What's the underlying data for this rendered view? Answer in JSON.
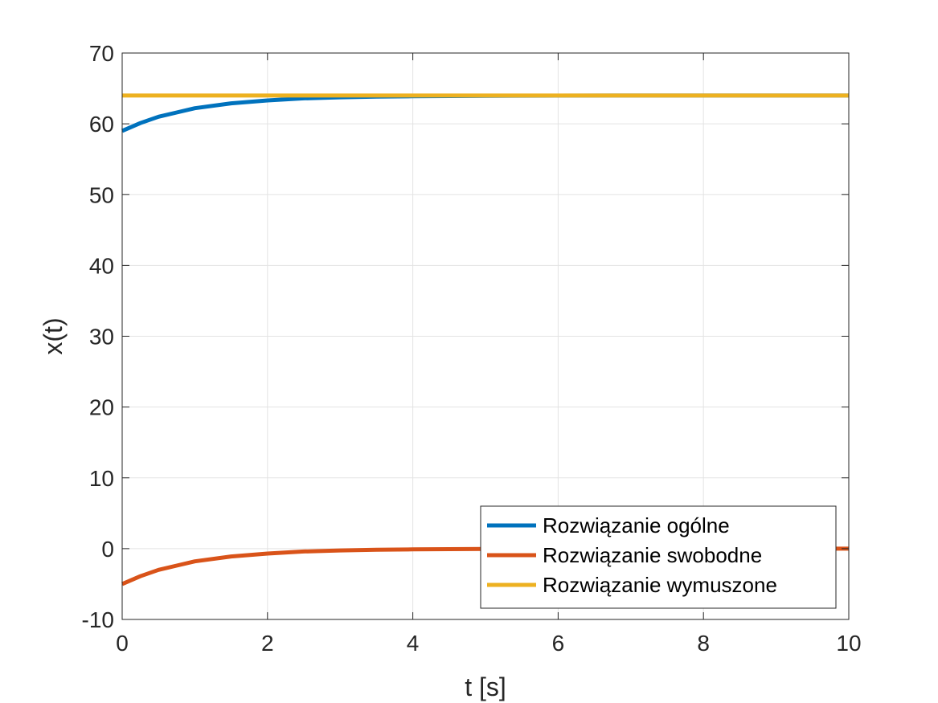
{
  "chart_data": {
    "type": "line",
    "xlabel": "t [s]",
    "ylabel": "x(t)",
    "xlim": [
      0,
      10
    ],
    "ylim": [
      -10,
      70
    ],
    "xticks": [
      0,
      2,
      4,
      6,
      8,
      10
    ],
    "yticks": [
      -10,
      0,
      10,
      20,
      30,
      40,
      50,
      60,
      70
    ],
    "xtick_labels": [
      "0",
      "2",
      "4",
      "6",
      "8",
      "10"
    ],
    "ytick_labels": [
      "-10",
      "0",
      "10",
      "20",
      "30",
      "40",
      "50",
      "60",
      "70"
    ],
    "grid": true,
    "legend_position": "bottom-right",
    "x": [
      0,
      0.25,
      0.5,
      0.75,
      1,
      1.5,
      2,
      2.5,
      3,
      3.5,
      4,
      5,
      6,
      7,
      8,
      9,
      10
    ],
    "series": [
      {
        "name": "Rozwiązanie ogólne",
        "color": "#0072BD",
        "values": [
          59.0,
          60.1,
          61.0,
          61.6,
          62.2,
          62.9,
          63.3,
          63.6,
          63.75,
          63.85,
          63.9,
          63.96,
          63.99,
          64.0,
          64.0,
          64.0,
          64.0
        ]
      },
      {
        "name": "Rozwiązanie swobodne",
        "color": "#D95319",
        "values": [
          -5.0,
          -3.9,
          -3.0,
          -2.4,
          -1.8,
          -1.1,
          -0.7,
          -0.4,
          -0.25,
          -0.15,
          -0.1,
          -0.04,
          -0.01,
          0.0,
          0.0,
          0.0,
          0.0
        ]
      },
      {
        "name": "Rozwiązanie wymuszone",
        "color": "#EDB120",
        "values": [
          64,
          64,
          64,
          64,
          64,
          64,
          64,
          64,
          64,
          64,
          64,
          64,
          64,
          64,
          64,
          64,
          64
        ]
      }
    ]
  }
}
